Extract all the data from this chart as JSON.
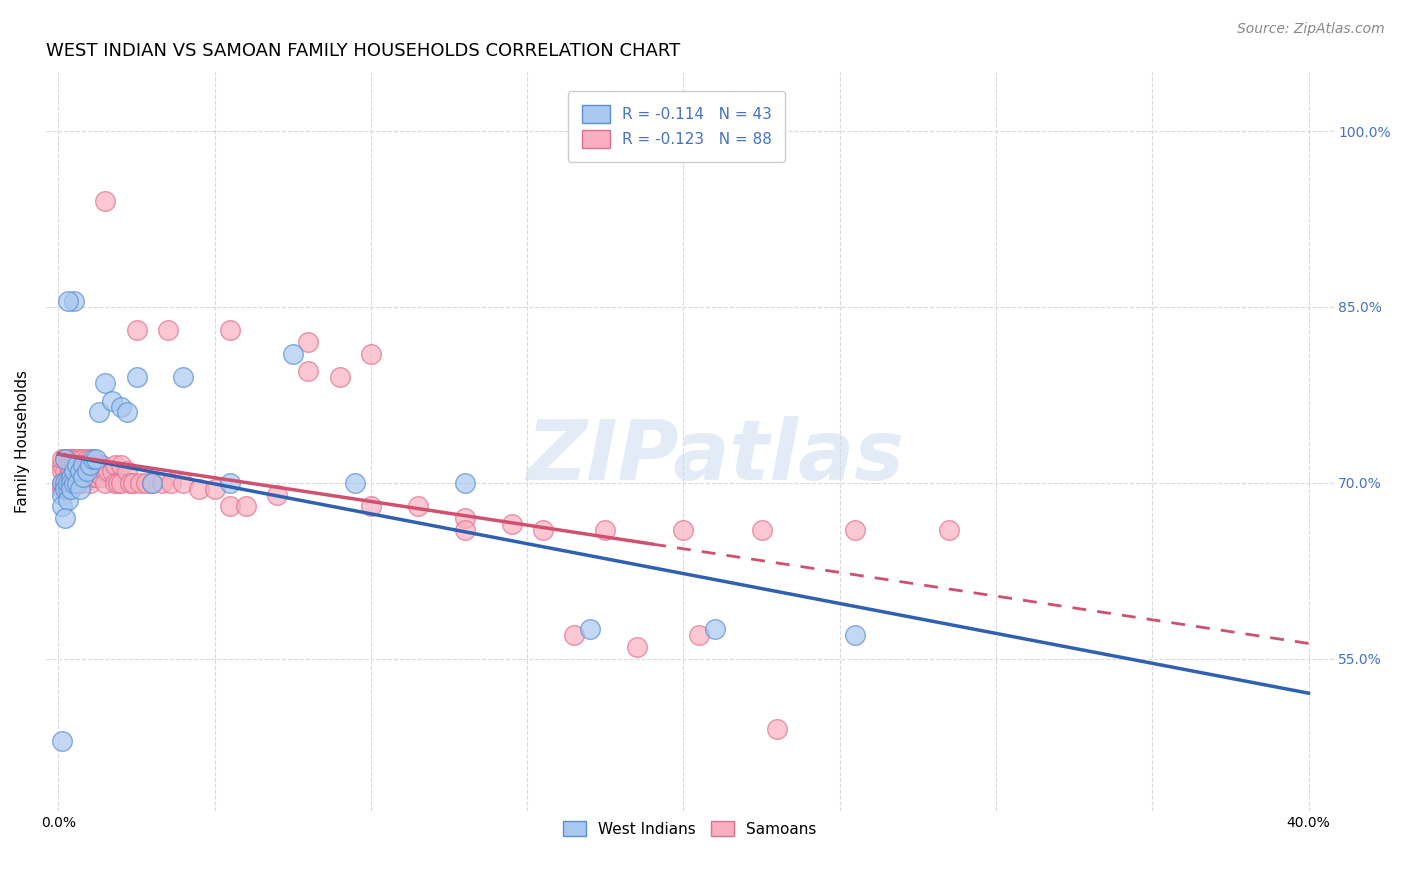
{
  "title": "WEST INDIAN VS SAMOAN FAMILY HOUSEHOLDS CORRELATION CHART",
  "source": "Source: ZipAtlas.com",
  "ylabel": "Family Households",
  "xlim": [
    -0.004,
    0.408
  ],
  "ylim": [
    0.42,
    1.05
  ],
  "yticks": [
    0.55,
    0.7,
    0.85,
    1.0
  ],
  "ytick_labels": [
    "55.0%",
    "70.0%",
    "85.0%",
    "100.0%"
  ],
  "xtick_positions": [
    0.0,
    0.05,
    0.1,
    0.15,
    0.2,
    0.25,
    0.3,
    0.35,
    0.4
  ],
  "xtick_labels": [
    "0.0%",
    "",
    "",
    "",
    "",
    "",
    "",
    "",
    "40.0%"
  ],
  "west_indian_fill": "#a8c8f0",
  "west_indian_edge": "#5a8fd0",
  "samoan_fill": "#f8b0c0",
  "samoan_edge": "#e07090",
  "west_indian_line_color": "#3060b0",
  "samoan_line_color": "#d05070",
  "legend_text1": "R = -0.114   N = 43",
  "legend_text2": "R = -0.123   N = 88",
  "west_indians_label": "West Indians",
  "samoans_label": "Samoans",
  "watermark": "ZIPatlas",
  "title_fontsize": 13,
  "axis_label_fontsize": 11,
  "tick_fontsize": 10,
  "legend_fontsize": 11,
  "source_fontsize": 10,
  "wi_x": [
    0.001,
    0.001,
    0.001,
    0.002,
    0.002,
    0.002,
    0.003,
    0.003,
    0.003,
    0.004,
    0.004,
    0.004,
    0.005,
    0.005,
    0.006,
    0.006,
    0.007,
    0.007,
    0.008,
    0.008,
    0.009,
    0.01,
    0.011,
    0.012,
    0.013,
    0.015,
    0.017,
    0.02,
    0.022,
    0.025,
    0.03,
    0.04,
    0.055,
    0.075,
    0.095,
    0.13,
    0.17,
    0.21,
    0.255,
    0.005,
    0.003,
    0.002,
    0.001
  ],
  "wi_y": [
    0.7,
    0.69,
    0.68,
    0.7,
    0.695,
    0.72,
    0.695,
    0.7,
    0.685,
    0.705,
    0.7,
    0.695,
    0.7,
    0.71,
    0.7,
    0.715,
    0.71,
    0.695,
    0.715,
    0.705,
    0.71,
    0.715,
    0.72,
    0.72,
    0.76,
    0.785,
    0.77,
    0.765,
    0.76,
    0.79,
    0.7,
    0.79,
    0.7,
    0.81,
    0.7,
    0.7,
    0.575,
    0.575,
    0.57,
    0.855,
    0.855,
    0.67,
    0.48
  ],
  "sa_x": [
    0.001,
    0.001,
    0.001,
    0.001,
    0.001,
    0.002,
    0.002,
    0.002,
    0.002,
    0.003,
    0.003,
    0.003,
    0.003,
    0.004,
    0.004,
    0.004,
    0.004,
    0.005,
    0.005,
    0.005,
    0.005,
    0.006,
    0.006,
    0.006,
    0.007,
    0.007,
    0.007,
    0.008,
    0.008,
    0.008,
    0.009,
    0.009,
    0.01,
    0.01,
    0.01,
    0.011,
    0.011,
    0.012,
    0.012,
    0.013,
    0.014,
    0.014,
    0.015,
    0.015,
    0.016,
    0.017,
    0.018,
    0.018,
    0.019,
    0.02,
    0.02,
    0.022,
    0.023,
    0.024,
    0.026,
    0.028,
    0.03,
    0.033,
    0.036,
    0.04,
    0.045,
    0.05,
    0.055,
    0.06,
    0.07,
    0.08,
    0.09,
    0.1,
    0.115,
    0.13,
    0.145,
    0.165,
    0.185,
    0.205,
    0.23,
    0.015,
    0.025,
    0.035,
    0.055,
    0.08,
    0.1,
    0.13,
    0.155,
    0.175,
    0.2,
    0.225,
    0.255,
    0.285
  ],
  "sa_y": [
    0.715,
    0.71,
    0.7,
    0.695,
    0.72,
    0.72,
    0.71,
    0.7,
    0.695,
    0.72,
    0.715,
    0.705,
    0.7,
    0.72,
    0.715,
    0.71,
    0.7,
    0.72,
    0.715,
    0.705,
    0.7,
    0.72,
    0.715,
    0.7,
    0.72,
    0.71,
    0.7,
    0.72,
    0.71,
    0.7,
    0.72,
    0.71,
    0.72,
    0.715,
    0.7,
    0.715,
    0.705,
    0.715,
    0.705,
    0.715,
    0.715,
    0.705,
    0.71,
    0.7,
    0.71,
    0.71,
    0.715,
    0.7,
    0.7,
    0.715,
    0.7,
    0.71,
    0.7,
    0.7,
    0.7,
    0.7,
    0.7,
    0.7,
    0.7,
    0.7,
    0.695,
    0.695,
    0.68,
    0.68,
    0.69,
    0.795,
    0.79,
    0.68,
    0.68,
    0.67,
    0.665,
    0.57,
    0.56,
    0.57,
    0.49,
    0.94,
    0.83,
    0.83,
    0.83,
    0.82,
    0.81,
    0.66,
    0.66,
    0.66,
    0.66,
    0.66,
    0.66,
    0.66
  ]
}
